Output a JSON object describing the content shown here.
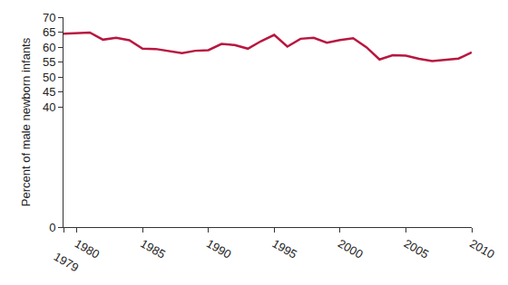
{
  "chart_data": {
    "type": "line",
    "y_label": "Percent of male newborn infants",
    "x": [
      1979,
      1980,
      1981,
      1982,
      1983,
      1984,
      1985,
      1986,
      1987,
      1988,
      1989,
      1990,
      1991,
      1992,
      1993,
      1994,
      1995,
      1996,
      1997,
      1998,
      1999,
      2000,
      2001,
      2002,
      2003,
      2004,
      2005,
      2006,
      2007,
      2008,
      2009,
      2010
    ],
    "values": [
      64.5,
      64.7,
      64.9,
      62.5,
      63.1,
      62.3,
      59.5,
      59.4,
      58.6,
      58.0,
      58.8,
      59.0,
      61.1,
      60.7,
      59.5,
      62.0,
      64.1,
      60.2,
      62.8,
      63.1,
      61.5,
      62.4,
      63.0,
      60.0,
      55.9,
      57.3,
      57.2,
      56.1,
      55.4,
      55.9,
      56.2,
      58.3
    ],
    "color": "#b8173f",
    "xlim": [
      1979,
      2010
    ],
    "xticks": [
      1979,
      1980,
      1985,
      1990,
      1995,
      2000,
      2005,
      2010
    ],
    "ylim": [
      0,
      70
    ],
    "yticks": [
      0,
      40,
      45,
      50,
      55,
      60,
      65,
      70
    ],
    "grid": false
  }
}
